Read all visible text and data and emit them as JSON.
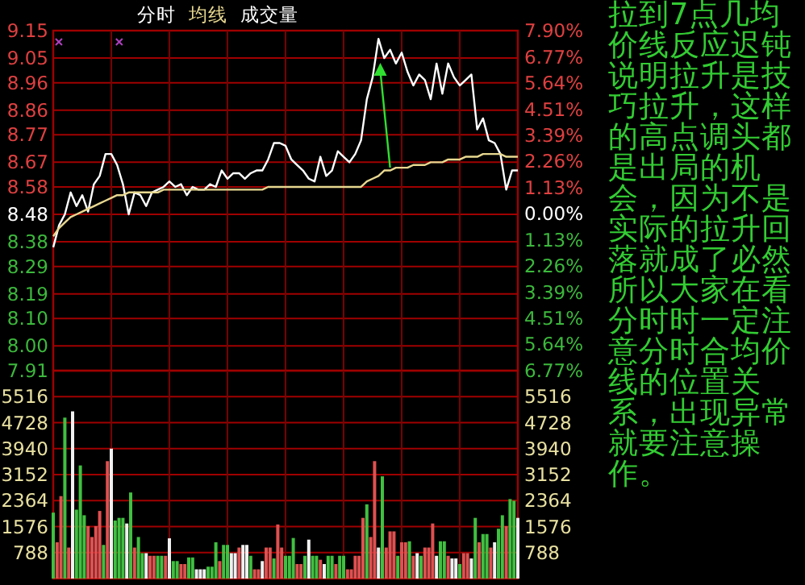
{
  "chart_data": [
    {
      "type": "line",
      "grid": true,
      "tick_labels": "y",
      "categories": [
        null,
        null,
        null,
        null,
        null,
        null,
        null,
        null,
        null,
        null,
        null,
        null,
        null,
        null,
        null,
        null,
        null,
        null,
        null,
        null,
        null,
        null,
        null,
        null,
        null,
        null,
        null,
        null,
        null,
        null,
        null,
        null,
        null,
        null,
        null,
        null,
        null,
        null,
        null,
        null,
        null,
        null,
        null,
        null,
        null,
        null,
        null,
        null,
        null,
        null,
        null,
        null,
        null,
        null,
        null,
        null,
        null,
        null,
        null,
        null,
        null,
        null,
        null,
        null,
        null,
        null,
        null,
        null,
        null,
        null,
        null,
        null,
        null,
        null,
        null,
        null,
        null,
        null,
        null,
        null,
        null
      ],
      "ylim": [
        7.91,
        9.15
      ],
      "yticks": [
        9.15,
        9.05,
        8.96,
        8.86,
        8.77,
        8.67,
        8.58,
        8.48,
        8.38,
        8.29,
        8.19,
        {
          "value": 8.1,
          "label": "8.10"
        },
        {
          "value": 8,
          "label": "8.00"
        },
        7.91
      ],
      "y2lim": [
        -6.77,
        7.9
      ],
      "y2ticks": [
        {
          "value": 7.9,
          "label": "7.90%"
        },
        {
          "value": 6.77,
          "label": "6.77%"
        },
        {
          "value": 5.64,
          "label": "5.64%"
        },
        {
          "value": 4.51,
          "label": "4.51%"
        },
        {
          "value": 3.39,
          "label": "3.39%"
        },
        {
          "value": 2.26,
          "label": "2.26%"
        },
        {
          "value": 1.13,
          "label": "1.13%"
        },
        {
          "value": 0,
          "label": "0.00%"
        },
        {
          "value": -1.13,
          "label": "1.13%"
        },
        {
          "value": -2.26,
          "label": "2.26%"
        },
        {
          "value": -3.39,
          "label": "3.39%"
        },
        {
          "value": -4.51,
          "label": "4.51%"
        },
        {
          "value": -5.64,
          "label": "5.64%"
        },
        {
          "value": -6.77,
          "label": "6.77%"
        }
      ],
      "series": [
        {
          "name": "分时",
          "color": "#ffffff",
          "values": [
            8.36,
            8.44,
            8.48,
            8.56,
            8.51,
            8.55,
            8.49,
            8.59,
            8.62,
            8.7,
            8.7,
            8.66,
            8.59,
            8.48,
            8.56,
            8.55,
            8.51,
            8.56,
            8.57,
            8.58,
            8.6,
            8.58,
            8.59,
            8.55,
            8.58,
            8.57,
            8.57,
            8.59,
            8.58,
            8.64,
            8.61,
            8.63,
            8.63,
            8.61,
            8.63,
            8.64,
            8.64,
            8.68,
            8.74,
            8.74,
            8.73,
            8.68,
            8.66,
            8.64,
            8.61,
            8.6,
            8.69,
            8.62,
            8.64,
            8.71,
            8.69,
            8.67,
            8.7,
            8.75,
            8.9,
            8.98,
            9.12,
            9.05,
            9.08,
            9.03,
            9.07,
            9.0,
            8.95,
            8.99,
            8.97,
            8.9,
            9.03,
            8.92,
            9.03,
            8.98,
            8.95,
            8.97,
            8.99,
            8.79,
            8.83,
            8.75,
            8.74,
            8.7,
            8.57,
            8.64,
            8.64
          ]
        },
        {
          "name": "均线",
          "color": "#e8d890",
          "values": [
            8.4,
            8.43,
            8.45,
            8.47,
            8.48,
            8.49,
            8.5,
            8.51,
            8.52,
            8.53,
            8.54,
            8.55,
            8.55,
            8.56,
            8.56,
            8.56,
            8.56,
            8.56,
            8.56,
            8.57,
            8.57,
            8.57,
            8.57,
            8.57,
            8.57,
            8.57,
            8.57,
            8.57,
            8.57,
            8.57,
            8.57,
            8.57,
            8.57,
            8.57,
            8.57,
            8.57,
            8.57,
            8.58,
            8.58,
            8.58,
            8.58,
            8.58,
            8.58,
            8.58,
            8.58,
            8.58,
            8.58,
            8.58,
            8.58,
            8.58,
            8.58,
            8.58,
            8.58,
            8.58,
            8.6,
            8.61,
            8.62,
            8.64,
            8.64,
            8.65,
            8.65,
            8.65,
            8.66,
            8.66,
            8.66,
            8.67,
            8.67,
            8.67,
            8.68,
            8.68,
            8.68,
            8.69,
            8.69,
            8.69,
            8.7,
            8.7,
            8.7,
            8.7,
            8.69,
            8.69,
            8.69
          ]
        }
      ],
      "annotations": [
        "拉到7点几均价线反应迟钝说明拉升是技巧拉升，这样的高点调头都是出局的机会，因为不是实际的拉升回落就成了必然所以大家在看分时时一定注意分时合均价线的位置关系，出现异常就要注意操作。"
      ]
    },
    {
      "type": "bar",
      "grid": true,
      "tick_labels": "y",
      "categories": [
        null,
        null,
        null,
        null,
        null,
        null,
        null,
        null,
        null,
        null,
        null,
        null,
        null,
        null,
        null,
        null,
        null,
        null,
        null,
        null,
        null,
        null,
        null,
        null,
        null,
        null,
        null,
        null,
        null,
        null,
        null,
        null,
        null,
        null,
        null,
        null,
        null,
        null,
        null,
        null,
        null,
        null,
        null,
        null,
        null,
        null,
        null,
        null,
        null,
        null,
        null,
        null,
        null,
        null,
        null,
        null,
        null,
        null,
        null,
        null,
        null,
        null,
        null,
        null,
        null,
        null,
        null,
        null,
        null,
        null,
        null,
        null,
        null,
        null,
        null,
        null,
        null,
        null,
        null,
        null,
        null,
        null,
        null,
        null,
        null,
        null,
        null,
        null,
        null,
        null,
        null,
        null,
        null,
        null,
        null,
        null,
        null,
        null,
        null,
        null,
        null,
        null,
        null,
        null,
        null,
        null,
        null,
        null,
        null,
        null,
        null,
        null,
        null,
        null,
        null,
        null,
        null,
        null,
        null,
        null,
        null
      ],
      "ylim": [
        0,
        6304
      ],
      "yticks": [
        5516,
        4728,
        3940,
        3152,
        2364,
        1576,
        788
      ],
      "y2lim": [
        0,
        6304
      ],
      "y2ticks": [
        5516,
        4728,
        3940,
        3152,
        2364,
        1576,
        788
      ],
      "series": [
        {
          "name": "成交量",
          "color": "#ffffff",
          "values": [
            2000,
            1100,
            2500,
            4880,
            940,
            5070,
            2090,
            3430,
            1920,
            1590,
            1260,
            1590,
            2050,
            1020,
            3560,
            3940,
            1760,
            1840,
            1840,
            1670,
            2610,
            940,
            1260,
            770,
            770,
            690,
            690,
            690,
            690,
            690,
            1220,
            530,
            530,
            440,
            440,
            640,
            640,
            280,
            280,
            280,
            360,
            360,
            1100,
            530,
            1020,
            1020,
            770,
            770,
            940,
            1020,
            1020,
            690,
            280,
            280,
            530,
            940,
            940,
            610,
            1640,
            940,
            690,
            690,
            1230,
            440,
            440,
            690,
            1180,
            690,
            690,
            570,
            440,
            690,
            690,
            440,
            690,
            690,
            280,
            280,
            690,
            690,
            1840,
            2250,
            1260,
            3560,
            940,
            3100,
            940,
            1430,
            1430,
            690,
            1100,
            1100,
            1130,
            690,
            770,
            690,
            940,
            940,
            1670,
            690,
            1130,
            1130,
            690,
            610,
            610,
            440,
            770,
            770,
            610,
            1840,
            1100,
            1350,
            1350,
            940,
            1100,
            1510,
            1920,
            1590,
            2410,
            2360,
            1840
          ],
          "colors": [
            "#40c040",
            "#e05050",
            "#e05050",
            "#40c040",
            "#e05050",
            "#f0f0f0",
            "#40c040",
            "#40c040",
            "#40c040",
            "#e05050",
            "#e05050",
            "#e05050",
            "#e05050",
            "#40c040",
            "#e05050",
            "#f0f0f0",
            "#40c040",
            "#40c040",
            "#40c040",
            "#f0f0f0",
            "#40c040",
            "#e05050",
            "#40c040",
            "#40c040",
            "#f0f0f0",
            "#e05050",
            "#e05050",
            "#40c040",
            "#40c040",
            "#e05050",
            "#f0f0f0",
            "#40c040",
            "#40c040",
            "#e05050",
            "#e05050",
            "#40c040",
            "#40c040",
            "#f0f0f0",
            "#f0f0f0",
            "#f0f0f0",
            "#40c040",
            "#40c040",
            "#40c040",
            "#e05050",
            "#40c040",
            "#40c040",
            "#f0f0f0",
            "#f0f0f0",
            "#e05050",
            "#f0f0f0",
            "#f0f0f0",
            "#40c040",
            "#e05050",
            "#e05050",
            "#f0f0f0",
            "#e05050",
            "#e05050",
            "#40c040",
            "#e05050",
            "#e05050",
            "#40c040",
            "#40c040",
            "#40c040",
            "#e05050",
            "#e05050",
            "#40c040",
            "#f0f0f0",
            "#40c040",
            "#40c040",
            "#e05050",
            "#f0f0f0",
            "#40c040",
            "#40c040",
            "#e05050",
            "#40c040",
            "#40c040",
            "#e05050",
            "#e05050",
            "#e05050",
            "#e05050",
            "#e05050",
            "#40c040",
            "#e05050",
            "#e05050",
            "#f0f0f0",
            "#40c040",
            "#e05050",
            "#e05050",
            "#e05050",
            "#40c040",
            "#e05050",
            "#e05050",
            "#40c040",
            "#e05050",
            "#f0f0f0",
            "#40c040",
            "#e05050",
            "#e05050",
            "#e05050",
            "#f0f0f0",
            "#40c040",
            "#40c040",
            "#e05050",
            "#f0f0f0",
            "#f0f0f0",
            "#40c040",
            "#e05050",
            "#e05050",
            "#f0f0f0",
            "#40c040",
            "#e05050",
            "#40c040",
            "#40c040",
            "#e05050",
            "#f0f0f0",
            "#40c040",
            "#40c040",
            "#e05050",
            "#40c040",
            "#40c040",
            "#f0f0f0"
          ]
        }
      ]
    }
  ]
}
